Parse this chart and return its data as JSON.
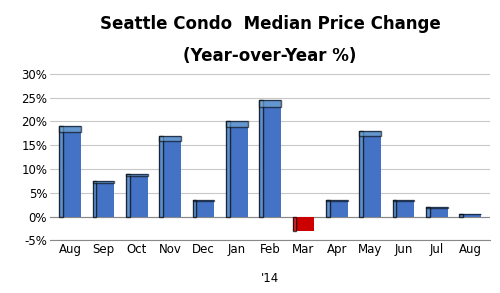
{
  "categories": [
    "Aug",
    "Sep",
    "Oct",
    "Nov",
    "Dec",
    "Jan",
    "Feb",
    "Mar",
    "Apr",
    "May",
    "Jun",
    "Jul",
    "Aug"
  ],
  "values": [
    19.0,
    7.5,
    9.0,
    17.0,
    3.5,
    20.0,
    24.5,
    -3.0,
    3.5,
    18.0,
    3.5,
    2.0,
    0.5
  ],
  "bar_colors": [
    "#4472C4",
    "#4472C4",
    "#4472C4",
    "#4472C4",
    "#4472C4",
    "#4472C4",
    "#4472C4",
    "#CC0000",
    "#4472C4",
    "#4472C4",
    "#4472C4",
    "#4472C4",
    "#4472C4"
  ],
  "title_line1": "Seattle Condo  Median Price Change",
  "title_line2": "(Year-over-Year %)",
  "xlabel": "'14",
  "ylim": [
    -5,
    32
  ],
  "yticks": [
    -5,
    0,
    5,
    10,
    15,
    20,
    25,
    30
  ],
  "ytick_labels": [
    "-5%",
    "0%",
    "5%",
    "10%",
    "15%",
    "20%",
    "25%",
    "30%"
  ],
  "background_color": "#FFFFFF",
  "grid_color": "#C8C8C8",
  "title_fontsize": 12,
  "tick_fontsize": 8.5
}
